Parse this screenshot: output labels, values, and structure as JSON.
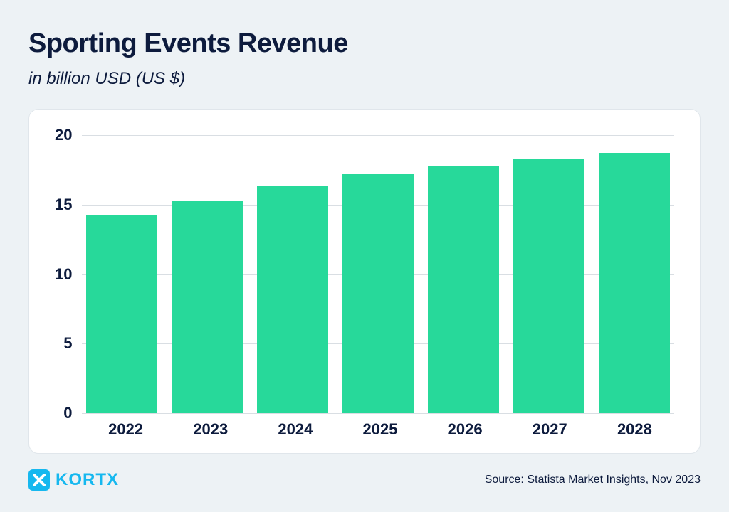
{
  "header": {
    "title": "Sporting Events Revenue",
    "subtitle": "in billion USD (US $)"
  },
  "chart": {
    "type": "bar",
    "categories": [
      "2022",
      "2023",
      "2024",
      "2025",
      "2026",
      "2027",
      "2028"
    ],
    "values": [
      14.2,
      15.3,
      16.3,
      17.2,
      17.8,
      18.3,
      18.7
    ],
    "bar_color": "#27d99a",
    "ylim": [
      0,
      20
    ],
    "ytick_step": 5,
    "yticks": [
      "20",
      "15",
      "10",
      "5",
      "0"
    ],
    "background_color": "#ffffff",
    "grid_color": "#d9dee3",
    "axis_label_fontsize": 22,
    "axis_label_fontweight": 700,
    "axis_label_color": "#0d1b3d",
    "title_fontsize": 38,
    "title_color": "#0d1b3d",
    "subtitle_fontsize": 24,
    "card_border_radius": 14,
    "page_background": "#edf2f5"
  },
  "footer": {
    "brand_name": "KORTX",
    "brand_color": "#16b8ef",
    "source": "Source: Statista Market Insights, Nov 2023"
  }
}
